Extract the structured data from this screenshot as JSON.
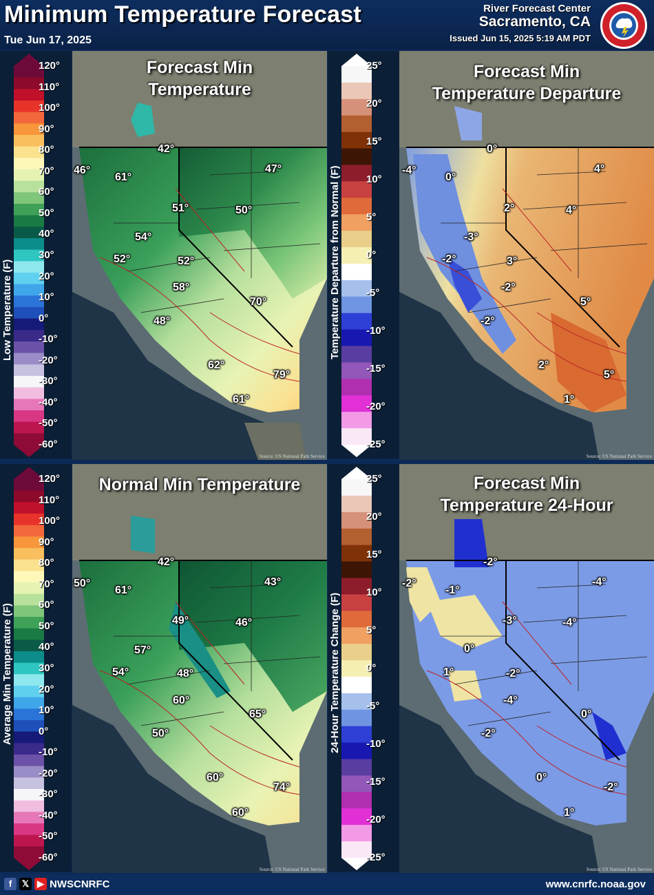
{
  "header": {
    "title": "Minimum Temperature Forecast",
    "date": "Tue Jun 17, 2025",
    "org": "River Forecast Center",
    "location": "Sacramento, CA",
    "issued": "Issued Jun 15, 2025 5:19 AM PDT",
    "logo_text": "NATIONAL WEATHER SERVICE"
  },
  "legends": {
    "temp_title": "Low Temperature (F)",
    "avg_title": "Average Min Temperature (F)",
    "departure_title": "Temperature Departure from Normal (F)",
    "change_title": "24-Hour Temperature Change (F)",
    "temp_ticks": [
      "120°",
      "110°",
      "100°",
      "90°",
      "80°",
      "70°",
      "60°",
      "50°",
      "40°",
      "30°",
      "20°",
      "10°",
      "0°",
      "-10°",
      "-20°",
      "-30°",
      "-40°",
      "-50°",
      "-60°"
    ],
    "dep_ticks": [
      "25°",
      "20°",
      "15°",
      "10°",
      "5°",
      "0°",
      "-5°",
      "-10°",
      "-15°",
      "-20°",
      "-25°"
    ],
    "temp_colors": [
      "#6e0a3a",
      "#8d0a2a",
      "#c0102a",
      "#e8332a",
      "#f2683a",
      "#f7963a",
      "#f9be5e",
      "#fbe28f",
      "#fdf8b8",
      "#e4f3b1",
      "#b8e19b",
      "#7fc57a",
      "#3fa158",
      "#1a7a44",
      "#0a5a48",
      "#0c8c8a",
      "#2fc6c2",
      "#8de8ee",
      "#5fd0ef",
      "#3fa6ea",
      "#2a74d8",
      "#1f4fb8",
      "#151a78",
      "#3a2a8a",
      "#6b52a8",
      "#9a8cc6",
      "#c7c1e0",
      "#f5f5fa",
      "#f0bde0",
      "#e677b8",
      "#d83883",
      "#bd164f",
      "#8e0b37"
    ],
    "dep_colors": [
      "#f7f7f7",
      "#ebc7b7",
      "#d6917a",
      "#b45f30",
      "#7f3208",
      "#3d1504",
      "#8d1d2a",
      "#c84040",
      "#e06a3a",
      "#f0a060",
      "#e9cf8a",
      "#f5efb3",
      "#ffffff",
      "#a6c0ec",
      "#6f95e2",
      "#2e3fd6",
      "#1818b0",
      "#5a3da0",
      "#9257b8",
      "#b02fb0",
      "#e030d6",
      "#f29ae6",
      "#fbe8f7"
    ]
  },
  "panels": {
    "fcst": {
      "title_line1": "Forecast Min",
      "title_line2": "Temperature",
      "labels": [
        "42°",
        "46°",
        "61°",
        "47°",
        "51°",
        "50°",
        "54°",
        "52°",
        "52°",
        "58°",
        "70°",
        "48°",
        "62°",
        "79°",
        "61°"
      ]
    },
    "dep": {
      "title_line1": "Forecast Min",
      "title_line2": "Temperature Departure",
      "labels": [
        "0°",
        "-4°",
        "0°",
        "4°",
        "2°",
        "4°",
        "-3°",
        "-2°",
        "3°",
        "-2°",
        "5°",
        "-2°",
        "2°",
        "5°",
        "1°"
      ]
    },
    "norm": {
      "title_line1": "Normal Min Temperature",
      "labels": [
        "42°",
        "50°",
        "61°",
        "43°",
        "49°",
        "46°",
        "57°",
        "54°",
        "48°",
        "60°",
        "65°",
        "50°",
        "60°",
        "74°",
        "60°"
      ]
    },
    "chg": {
      "title_line1": "Forecast Min",
      "title_line2": "Temperature 24-Hour",
      "labels": [
        "-2°",
        "-2°",
        "-1°",
        "-4°",
        "-3°",
        "-4°",
        "0°",
        "1°",
        "-2°",
        "-4°",
        "0°",
        "-2°",
        "0°",
        "-2°",
        "1°"
      ]
    },
    "credit": "Source: US National Park Service"
  },
  "footer": {
    "handle": "NWSCNRFC",
    "url": "www.cnrfc.noaa.gov",
    "social_icons": [
      "facebook-icon",
      "x-icon",
      "youtube-icon"
    ]
  }
}
